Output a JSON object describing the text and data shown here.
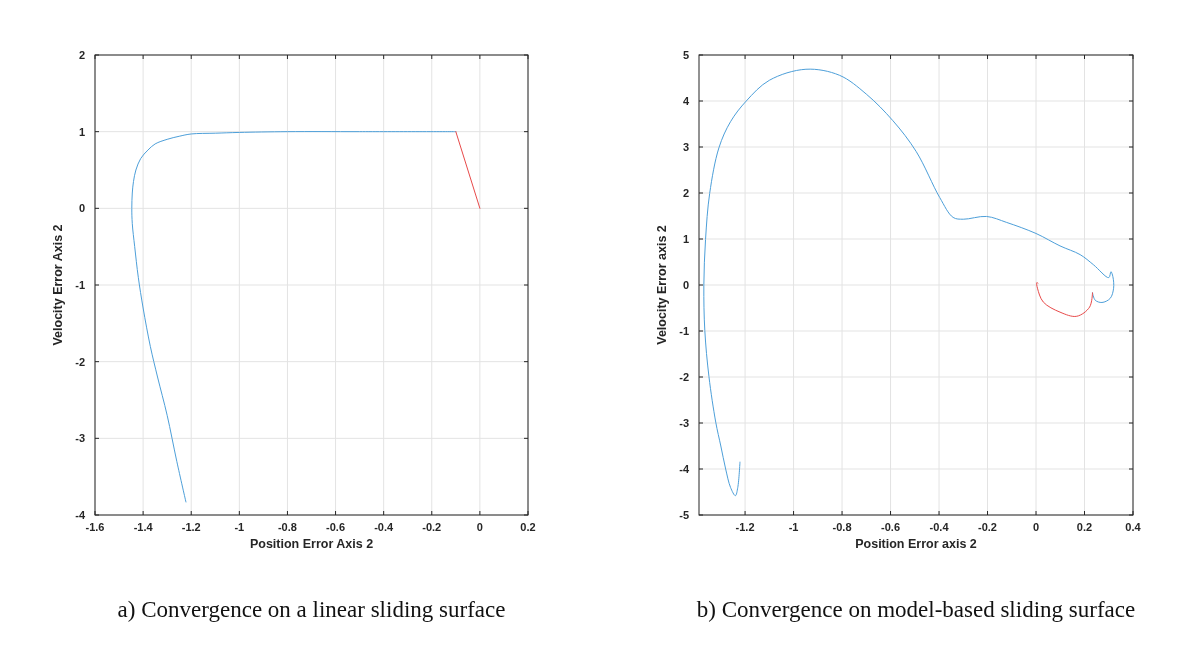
{
  "chart_data": [
    {
      "type": "line",
      "xlabel": "Position Error Axis 2",
      "ylabel": "Velocity Error Axis 2",
      "xlim": [
        -1.6,
        0.2
      ],
      "ylim": [
        -4,
        2
      ],
      "xticks": [
        -1.6,
        -1.4,
        -1.2,
        -1,
        -0.8,
        -0.6,
        -0.4,
        -0.2,
        0,
        0.2
      ],
      "yticks": [
        -4,
        -3,
        -2,
        -1,
        0,
        1,
        2
      ],
      "grid": true,
      "annotations": [
        "a) Convergence on a linear sliding surface"
      ],
      "series": [
        {
          "color": "#4d9fd9",
          "x": [
            -1.222,
            -1.26,
            -1.3,
            -1.34,
            -1.37,
            -1.4,
            -1.42,
            -1.435,
            -1.445,
            -1.447,
            -1.445,
            -1.44,
            -1.43,
            -1.41,
            -1.38,
            -1.35,
            -1.3,
            -1.25,
            -1.2,
            -1.1,
            -1,
            -0.8,
            -0.5,
            -0.1
          ],
          "values": [
            -3.83,
            -3.3,
            -2.7,
            -2.2,
            -1.8,
            -1.3,
            -0.9,
            -0.5,
            -0.2,
            0,
            0.2,
            0.35,
            0.5,
            0.65,
            0.76,
            0.84,
            0.9,
            0.94,
            0.97,
            0.98,
            0.99,
            1,
            1,
            1
          ]
        },
        {
          "color": "#e84a4a",
          "x": [
            -0.1,
            0
          ],
          "values": [
            1,
            0
          ]
        }
      ]
    },
    {
      "type": "line",
      "xlabel": "Position Error axis 2",
      "ylabel": "Velocity Error axis 2",
      "xlim": [
        -1.39,
        0.4
      ],
      "ylim": [
        -5,
        5
      ],
      "xticks": [
        -1.2,
        -1,
        -0.8,
        -0.6,
        -0.4,
        -0.2,
        0,
        0.2,
        0.4
      ],
      "yticks": [
        -5,
        -4,
        -3,
        -2,
        -1,
        0,
        1,
        2,
        3,
        4,
        5
      ],
      "grid": true,
      "annotations": [
        "b) Convergence on model-based sliding surface"
      ],
      "series": [
        {
          "color": "#4d9fd9",
          "x": [
            -1.221,
            -1.23,
            -1.24,
            -1.26,
            -1.28,
            -1.3,
            -1.321,
            -1.349,
            -1.366,
            -1.37,
            -1.363,
            -1.346,
            -1.308,
            -1.26,
            -1.195,
            -1.1,
            -0.949,
            -0.811,
            -0.7,
            -0.59,
            -0.494,
            -0.397,
            -0.342,
            -0.3,
            -0.204,
            -0.121,
            0,
            0.099,
            0.182,
            0.237,
            0.3,
            0.309,
            0.317,
            0.32,
            0.306,
            0.272,
            0.244,
            0.233
          ],
          "values": [
            -3.85,
            -4.4,
            -4.58,
            -4.4,
            -4.0,
            -3.5,
            -2.98,
            -1.99,
            -0.99,
            0,
            0.99,
            1.99,
            2.98,
            3.55,
            4.0,
            4.45,
            4.69,
            4.56,
            4.15,
            3.57,
            2.9,
            1.9,
            1.47,
            1.43,
            1.49,
            1.36,
            1.12,
            0.85,
            0.66,
            0.44,
            0.16,
            0.29,
            0.18,
            -0.07,
            -0.29,
            -0.38,
            -0.33,
            -0.17
          ]
        },
        {
          "color": "#e84a4a",
          "x": [
            0.233,
            0.221,
            0.168,
            0.099,
            0.03,
            0.006,
            0.003,
            0.008
          ],
          "values": [
            -0.17,
            -0.48,
            -0.68,
            -0.59,
            -0.37,
            -0.07,
            0.05,
            0.04
          ]
        }
      ]
    }
  ]
}
